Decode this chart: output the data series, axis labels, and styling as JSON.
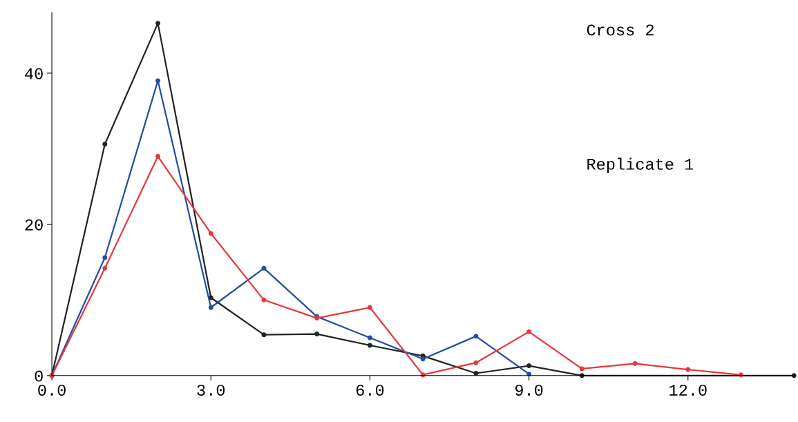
{
  "chart_data": {
    "type": "line",
    "series": [
      {
        "color": "#222222",
        "x": [
          0,
          1,
          2,
          3,
          4,
          5,
          6,
          7,
          8,
          9,
          10,
          14
        ],
        "values": [
          0,
          30.6,
          46.6,
          10.3,
          5.4,
          5.5,
          4.0,
          2.6,
          0.3,
          1.3,
          0,
          0
        ]
      },
      {
        "color": "#1f4fa0",
        "x": [
          0,
          1,
          2,
          3,
          4,
          5,
          6,
          7,
          8,
          9
        ],
        "values": [
          0,
          15.6,
          39,
          9.0,
          14.2,
          7.8,
          5.0,
          2.2,
          5.2,
          0.2
        ]
      },
      {
        "color": "#e8373a",
        "x": [
          0,
          1,
          2,
          3,
          4,
          5,
          6,
          7,
          8,
          9,
          10,
          11,
          12,
          13
        ],
        "values": [
          0,
          14.2,
          29.0,
          18.8,
          10.0,
          7.6,
          9.0,
          0.1,
          1.7,
          5.8,
          0.9,
          1.6,
          0.8,
          0.1
        ]
      }
    ],
    "xlim": [
      0,
      14
    ],
    "xticks": [
      {
        "value": 0,
        "label": "0.0"
      },
      {
        "value": 3,
        "label": "3.0"
      },
      {
        "value": 6,
        "label": "6.0"
      },
      {
        "value": 9,
        "label": "9.0"
      },
      {
        "value": 12,
        "label": "12.0"
      }
    ],
    "ylim": [
      0,
      48
    ],
    "yticks": [
      0,
      20,
      40
    ],
    "annotations": [
      "Cross 2",
      "Replicate 1"
    ],
    "grid": false,
    "legend": false,
    "marker": "circle",
    "line_style": "solid"
  }
}
